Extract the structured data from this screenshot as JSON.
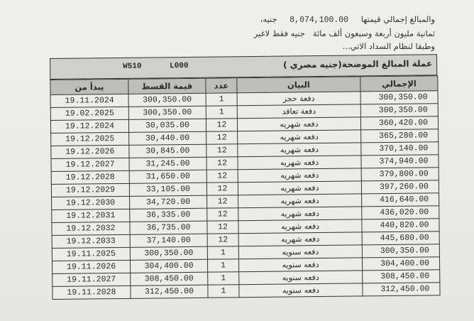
{
  "intro": {
    "line1_text": "والمبالغ إجمالي قيمتها",
    "line1_amount": "8,074,100.00",
    "line1_currency": "جنيه،",
    "line2_text": "ثمانية مليون أربعة وسبعون ألف مائة",
    "line2_suffix": "جنيه فقط لاغير",
    "line3_text": "وطبقا لنظام السداد الاتي..."
  },
  "table": {
    "currency_label": "عملة المبالغ الموضحة(جنيه مصري )",
    "code1": "W510",
    "code2": "L000",
    "headers": {
      "start": "يبدأ من",
      "installment": "قيمة القسط",
      "count": "عدد",
      "description": "البيان",
      "total": "الإجمالي"
    },
    "rows": [
      {
        "start": "19.11.2024",
        "installment": "300,350.00",
        "count": "1",
        "description": "دفعة حجز",
        "total": "300,350.00"
      },
      {
        "start": "19.02.2025",
        "installment": "300,350.00",
        "count": "1",
        "description": "دفعة تعاقد",
        "total": "300,350.00"
      },
      {
        "start": "19.12.2024",
        "installment": "30,035.00",
        "count": "12",
        "description": "دفعه شهريه",
        "total": "360,420.00"
      },
      {
        "start": "19.12.2025",
        "installment": "30,440.00",
        "count": "12",
        "description": "دفعه شهريه",
        "total": "365,280.00"
      },
      {
        "start": "19.12.2026",
        "installment": "30,845.00",
        "count": "12",
        "description": "دفعه شهريه",
        "total": "370,140.00"
      },
      {
        "start": "19.12.2027",
        "installment": "31,245.00",
        "count": "12",
        "description": "دفعه شهريه",
        "total": "374,940.00"
      },
      {
        "start": "19.12.2028",
        "installment": "31,650.00",
        "count": "12",
        "description": "دفعه شهريه",
        "total": "379,800.00"
      },
      {
        "start": "19.12.2029",
        "installment": "33,105.00",
        "count": "12",
        "description": "دفعه شهريه",
        "total": "397,260.00"
      },
      {
        "start": "19.12.2030",
        "installment": "34,720.00",
        "count": "12",
        "description": "دفعه شهريه",
        "total": "416,640.00"
      },
      {
        "start": "19.12.2031",
        "installment": "36,335.00",
        "count": "12",
        "description": "دفعه شهريه",
        "total": "436,020.00"
      },
      {
        "start": "19.12.2032",
        "installment": "36,735.00",
        "count": "12",
        "description": "دفعه شهريه",
        "total": "440,820.00"
      },
      {
        "start": "19.12.2033",
        "installment": "37,140.00",
        "count": "12",
        "description": "دفعه شهريه",
        "total": "445,680.00"
      },
      {
        "start": "19.11.2025",
        "installment": "300,350.00",
        "count": "1",
        "description": "دفعه سنويه",
        "total": "300,350.00"
      },
      {
        "start": "19.11.2026",
        "installment": "304,400.00",
        "count": "1",
        "description": "دفعه سنويه",
        "total": "304,400.00"
      },
      {
        "start": "19.11.2027",
        "installment": "308,450.00",
        "count": "1",
        "description": "دفعه سنويه",
        "total": "308,450.00"
      },
      {
        "start": "19.11.2028",
        "installment": "312,450.00",
        "count": "1",
        "description": "دفعه سنويه",
        "total": "312,450.00"
      }
    ]
  }
}
